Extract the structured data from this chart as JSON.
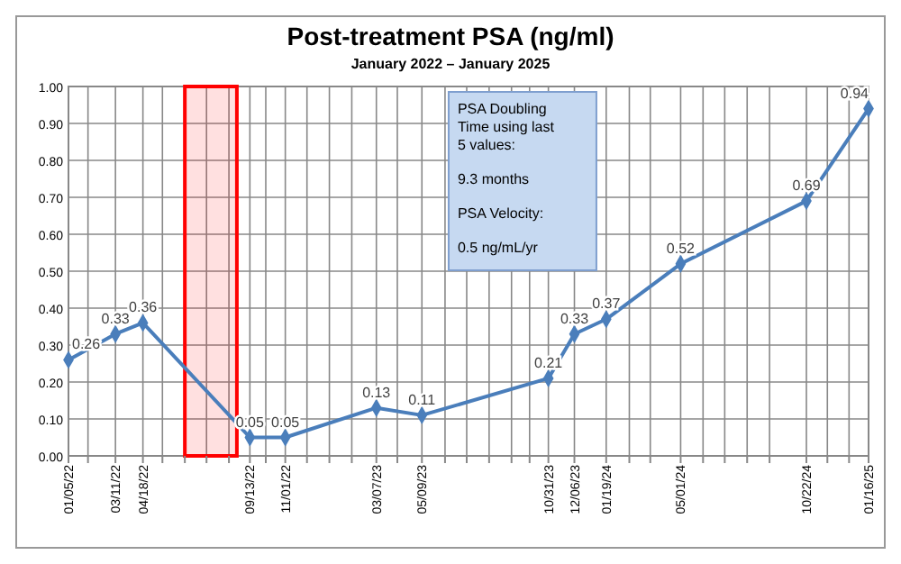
{
  "chart_data": {
    "type": "line",
    "title": "Post-treatment PSA (ng/ml)",
    "subtitle": "January 2022 – January 2025",
    "x": [
      "2022-01-05",
      "2022-03-11",
      "2022-04-18",
      "2022-09-13",
      "2022-11-01",
      "2023-03-07",
      "2023-05-09",
      "2023-10-31",
      "2023-12-06",
      "2024-01-19",
      "2024-05-01",
      "2024-10-22",
      "2025-01-16"
    ],
    "series": [
      {
        "color": "#4a7ebb",
        "values": [
          0.26,
          0.33,
          0.36,
          0.05,
          0.05,
          0.13,
          0.11,
          0.21,
          0.33,
          0.37,
          0.52,
          0.69,
          0.94
        ]
      }
    ],
    "data_labels": true,
    "marker": "diamond",
    "line_style": "solid",
    "grid": true,
    "xlim": [
      "2022-01-05",
      "2025-01-16"
    ],
    "xticks": [
      {
        "value": "2022-01-05",
        "label": "01/05/22"
      },
      {
        "value": "2022-02-01",
        "label": null
      },
      {
        "value": "2022-03-11",
        "label": "03/11/22"
      },
      {
        "value": "2022-04-18",
        "label": "04/18/22"
      },
      {
        "value": "2022-05-15",
        "label": null
      },
      {
        "value": "2022-06-15",
        "label": null
      },
      {
        "value": "2022-07-15",
        "label": null
      },
      {
        "value": "2022-08-15",
        "label": null
      },
      {
        "value": "2022-09-13",
        "label": "09/13/22"
      },
      {
        "value": "2022-10-05",
        "label": null
      },
      {
        "value": "2022-11-01",
        "label": "11/01/22"
      },
      {
        "value": "2022-12-01",
        "label": null
      },
      {
        "value": "2023-01-01",
        "label": null
      },
      {
        "value": "2023-02-01",
        "label": null
      },
      {
        "value": "2023-03-07",
        "label": "03/07/23"
      },
      {
        "value": "2023-04-05",
        "label": null
      },
      {
        "value": "2023-05-09",
        "label": "05/09/23"
      },
      {
        "value": "2023-06-10",
        "label": null
      },
      {
        "value": "2023-07-10",
        "label": null
      },
      {
        "value": "2023-08-10",
        "label": null
      },
      {
        "value": "2023-09-10",
        "label": null
      },
      {
        "value": "2023-10-05",
        "label": null
      },
      {
        "value": "2023-10-31",
        "label": "10/31/23"
      },
      {
        "value": "2023-12-06",
        "label": "12/06/23"
      },
      {
        "value": "2024-01-19",
        "label": "01/19/24"
      },
      {
        "value": "2024-02-20",
        "label": null
      },
      {
        "value": "2024-03-20",
        "label": null
      },
      {
        "value": "2024-05-01",
        "label": "05/01/24"
      },
      {
        "value": "2024-06-01",
        "label": null
      },
      {
        "value": "2024-07-01",
        "label": null
      },
      {
        "value": "2024-08-01",
        "label": null
      },
      {
        "value": "2024-09-01",
        "label": null
      },
      {
        "value": "2024-10-22",
        "label": "10/22/24"
      },
      {
        "value": "2024-11-20",
        "label": null
      },
      {
        "value": "2024-12-20",
        "label": null
      },
      {
        "value": "2025-01-16",
        "label": "01/16/25"
      }
    ],
    "ylim": [
      0,
      1
    ],
    "yticks": [
      {
        "value": 0,
        "label": "0.00"
      },
      {
        "value": 0.1,
        "label": "0.10"
      },
      {
        "value": 0.2,
        "label": "0.20"
      },
      {
        "value": 0.3,
        "label": "0.30"
      },
      {
        "value": 0.4,
        "label": "0.40"
      },
      {
        "value": 0.5,
        "label": "0.50"
      },
      {
        "value": 0.6,
        "label": "0.60"
      },
      {
        "value": 0.7,
        "label": "0.70"
      },
      {
        "value": 0.8,
        "label": "0.80"
      },
      {
        "value": 0.9,
        "label": "0.90"
      },
      {
        "value": 1,
        "label": "1.00"
      }
    ],
    "bands": [
      {
        "axis": "x",
        "from": "2022-06-15",
        "to": "2022-08-26",
        "color": "#ff0000"
      }
    ],
    "annotations": [
      "PSA Doubling Time using last 5 values:",
      "9.3 months",
      "PSA Velocity:",
      "0.5 ng/mL/yr"
    ]
  }
}
